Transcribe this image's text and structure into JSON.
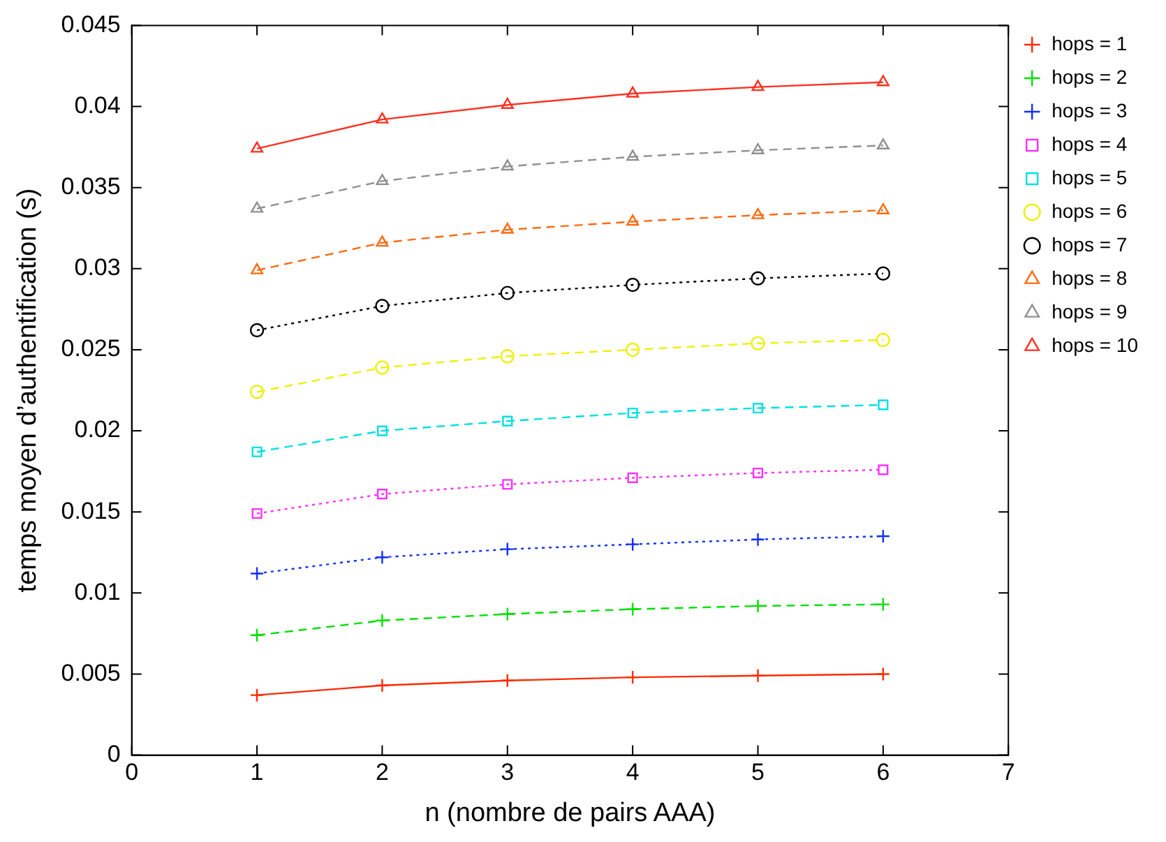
{
  "chart_data": {
    "type": "line",
    "xlabel": "n (nombre de pairs AAA)",
    "ylabel": "temps moyen d’authentification (s)",
    "x": [
      1,
      2,
      3,
      4,
      5,
      6
    ],
    "xlim": [
      0,
      7
    ],
    "xticks": [
      0,
      1,
      2,
      3,
      4,
      5,
      6,
      7
    ],
    "ylim": [
      0,
      0.045
    ],
    "yticks": [
      0,
      0.005,
      0.01,
      0.015,
      0.02,
      0.025,
      0.03,
      0.035,
      0.04,
      0.045
    ],
    "grid": false,
    "legend": "right",
    "series": [
      {
        "name": "hops = 1",
        "color": "#ff2a00",
        "marker": "cross",
        "line_style": "solid",
        "values": [
          0.0037,
          0.0043,
          0.0046,
          0.0048,
          0.0049,
          0.005
        ]
      },
      {
        "name": "hops = 2",
        "color": "#00e000",
        "marker": "cross",
        "line_style": "dashed",
        "values": [
          0.0074,
          0.0083,
          0.0087,
          0.009,
          0.0092,
          0.0093
        ]
      },
      {
        "name": "hops = 3",
        "color": "#1030ff",
        "marker": "cross",
        "line_style": "dotted",
        "values": [
          0.0112,
          0.0122,
          0.0127,
          0.013,
          0.0133,
          0.0135
        ]
      },
      {
        "name": "hops = 4",
        "color": "#ff30ff",
        "marker": "square",
        "line_style": "dotted",
        "values": [
          0.0149,
          0.0161,
          0.0167,
          0.0171,
          0.0174,
          0.0176
        ]
      },
      {
        "name": "hops = 5",
        "color": "#00e0e0",
        "marker": "square",
        "line_style": "dashed",
        "values": [
          0.0187,
          0.02,
          0.0206,
          0.0211,
          0.0214,
          0.0216
        ]
      },
      {
        "name": "hops = 6",
        "color": "#f0f000",
        "marker": "circle",
        "line_style": "dashed",
        "values": [
          0.0224,
          0.0239,
          0.0246,
          0.025,
          0.0254,
          0.0256
        ]
      },
      {
        "name": "hops = 7",
        "color": "#000000",
        "marker": "circle",
        "line_style": "dotted",
        "values": [
          0.0262,
          0.0277,
          0.0285,
          0.029,
          0.0294,
          0.0297
        ]
      },
      {
        "name": "hops = 8",
        "color": "#ff6a10",
        "marker": "triangle",
        "line_style": "dashed",
        "values": [
          0.0299,
          0.0316,
          0.0324,
          0.0329,
          0.0333,
          0.0336
        ]
      },
      {
        "name": "hops = 9",
        "color": "#909090",
        "marker": "triangle",
        "line_style": "dashed",
        "values": [
          0.0337,
          0.0354,
          0.0363,
          0.0369,
          0.0373,
          0.0376
        ]
      },
      {
        "name": "hops = 10",
        "color": "#ff3020",
        "marker": "triangle",
        "line_style": "solid",
        "values": [
          0.0374,
          0.0392,
          0.0401,
          0.0408,
          0.0412,
          0.0415
        ]
      }
    ]
  }
}
